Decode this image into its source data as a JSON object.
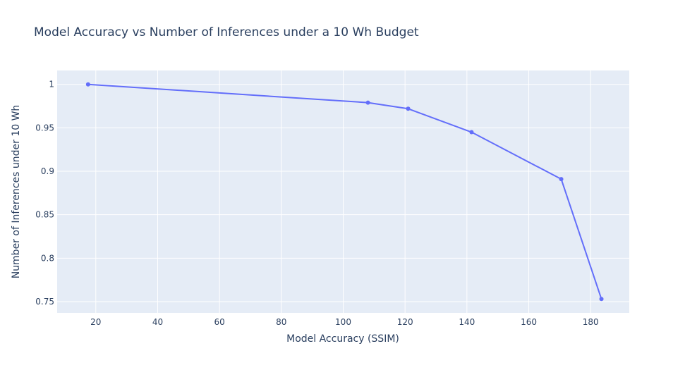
{
  "chart_data": {
    "type": "line",
    "title": "Model Accuracy vs Number of Inferences under a 10 Wh Budget",
    "xlabel": "Model Accuracy (SSIM)",
    "ylabel": "Number of Inferences under 10 Wh",
    "xlim": [
      7.5,
      192.5
    ],
    "ylim": [
      0.737,
      1.016
    ],
    "x_ticks": [
      20,
      40,
      60,
      80,
      100,
      120,
      140,
      160,
      180
    ],
    "x_tick_labels": [
      "20",
      "40",
      "60",
      "80",
      "100",
      "120",
      "140",
      "160",
      "180"
    ],
    "y_ticks": [
      0.75,
      0.8,
      0.85,
      0.9,
      0.95,
      1
    ],
    "y_tick_labels": [
      "0.75",
      "0.8",
      "0.85",
      "0.9",
      "0.95",
      "1"
    ],
    "grid": true,
    "series": [
      {
        "color": "#636efa",
        "mode": "lines+markers",
        "x": [
          17.5,
          108,
          121,
          141.5,
          170.5,
          183.5
        ],
        "y": [
          1.0,
          0.979,
          0.972,
          0.945,
          0.891,
          0.753
        ]
      }
    ]
  },
  "colors": {
    "plot_bg": "#e5ecf6",
    "grid": "#ffffff",
    "text": "#2a3f5f"
  }
}
